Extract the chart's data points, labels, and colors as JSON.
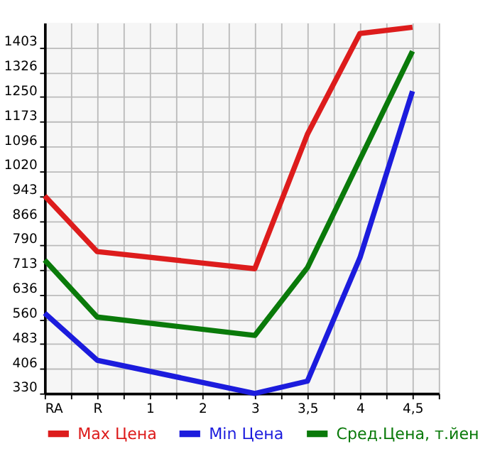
{
  "chart_data": {
    "type": "line",
    "categories": [
      "RA",
      "R",
      "1",
      "2",
      "3",
      "3,5",
      "4",
      "4,5"
    ],
    "series": [
      {
        "name": "Max Цена",
        "color": "#dd1c1c",
        "values": [
          943,
          770,
          null,
          null,
          717,
          1134,
          1447,
          1466
        ]
      },
      {
        "name": "Min Цена",
        "color": "#1c1cdd",
        "values": [
          579,
          433,
          null,
          null,
          330,
          368,
          751,
          1268
        ]
      },
      {
        "name": "Сред.Цена, т.йен",
        "color": "#0a7a0a",
        "values": [
          744,
          567,
          null,
          null,
          510,
          720,
          1056,
          1392
        ]
      }
    ],
    "ylim": [
      330,
      1480
    ],
    "yticks": [
      330,
      406,
      483,
      560,
      636,
      713,
      790,
      866,
      943,
      1020,
      1096,
      1173,
      1250,
      1326,
      1403
    ],
    "grid": true,
    "legend": "bottom",
    "marker": "none",
    "line_style": "solid"
  }
}
